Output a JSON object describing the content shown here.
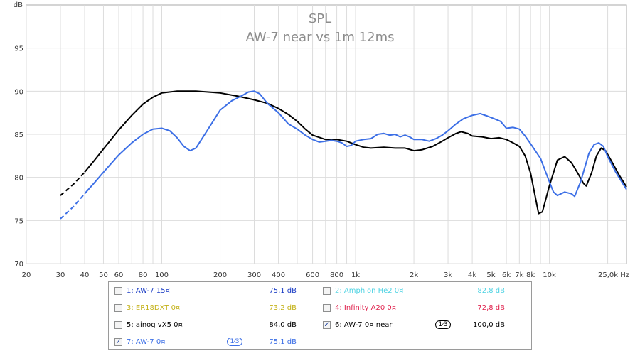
{
  "chart_data": {
    "type": "line",
    "title": "SPL",
    "subtitle": "AW-7 near vs 1m 12ms",
    "ylabel": "dB",
    "xunit": "Hz",
    "xscale": "log",
    "xlim": [
      20,
      25000
    ],
    "ylim": [
      70,
      100
    ],
    "yticks": [
      70,
      75,
      80,
      85,
      90,
      95
    ],
    "xticks": [
      {
        "v": 20,
        "label": "20"
      },
      {
        "v": 30,
        "label": "30"
      },
      {
        "v": 40,
        "label": "40"
      },
      {
        "v": 50,
        "label": "50"
      },
      {
        "v": 60,
        "label": "60"
      },
      {
        "v": 80,
        "label": "80"
      },
      {
        "v": 100,
        "label": "100"
      },
      {
        "v": 200,
        "label": "200"
      },
      {
        "v": 300,
        "label": "300"
      },
      {
        "v": 400,
        "label": "400"
      },
      {
        "v": 600,
        "label": "600"
      },
      {
        "v": 800,
        "label": "800"
      },
      {
        "v": 1000,
        "label": "1k"
      },
      {
        "v": 2000,
        "label": "2k"
      },
      {
        "v": 3000,
        "label": "3k"
      },
      {
        "v": 4000,
        "label": "4k"
      },
      {
        "v": 5000,
        "label": "5k"
      },
      {
        "v": 6000,
        "label": "6k"
      },
      {
        "v": 7000,
        "label": "7k"
      },
      {
        "v": 8000,
        "label": "8k"
      },
      {
        "v": 10000,
        "label": "10k"
      },
      {
        "v": 25000,
        "label": "25,0k Hz"
      }
    ],
    "grid": true,
    "series": [
      {
        "name": "6: AW-7 0¤ near",
        "color": "#000000",
        "dashed_below": 40,
        "points": [
          [
            30,
            77.9
          ],
          [
            35,
            79.2
          ],
          [
            40,
            80.6
          ],
          [
            45,
            82.0
          ],
          [
            50,
            83.3
          ],
          [
            60,
            85.5
          ],
          [
            70,
            87.2
          ],
          [
            80,
            88.5
          ],
          [
            90,
            89.3
          ],
          [
            100,
            89.8
          ],
          [
            120,
            90.0
          ],
          [
            150,
            90.0
          ],
          [
            200,
            89.8
          ],
          [
            250,
            89.4
          ],
          [
            300,
            89.0
          ],
          [
            350,
            88.6
          ],
          [
            400,
            88.0
          ],
          [
            450,
            87.3
          ],
          [
            500,
            86.5
          ],
          [
            550,
            85.6
          ],
          [
            600,
            84.9
          ],
          [
            700,
            84.4
          ],
          [
            800,
            84.4
          ],
          [
            900,
            84.2
          ],
          [
            1000,
            83.8
          ],
          [
            1100,
            83.5
          ],
          [
            1200,
            83.4
          ],
          [
            1400,
            83.5
          ],
          [
            1600,
            83.4
          ],
          [
            1800,
            83.4
          ],
          [
            2000,
            83.1
          ],
          [
            2200,
            83.2
          ],
          [
            2500,
            83.6
          ],
          [
            2800,
            84.2
          ],
          [
            3000,
            84.6
          ],
          [
            3300,
            85.1
          ],
          [
            3500,
            85.3
          ],
          [
            3800,
            85.1
          ],
          [
            4000,
            84.8
          ],
          [
            4500,
            84.7
          ],
          [
            5000,
            84.5
          ],
          [
            5500,
            84.6
          ],
          [
            6000,
            84.4
          ],
          [
            6500,
            84.0
          ],
          [
            7000,
            83.6
          ],
          [
            7500,
            82.5
          ],
          [
            8000,
            80.5
          ],
          [
            8500,
            77.5
          ],
          [
            8800,
            75.8
          ],
          [
            9200,
            76.0
          ],
          [
            10000,
            79.0
          ],
          [
            11000,
            82.0
          ],
          [
            12000,
            82.4
          ],
          [
            13000,
            81.7
          ],
          [
            14000,
            80.5
          ],
          [
            15000,
            79.3
          ],
          [
            15500,
            79.0
          ],
          [
            16500,
            80.5
          ],
          [
            17500,
            82.5
          ],
          [
            18500,
            83.4
          ],
          [
            19500,
            83.1
          ],
          [
            21000,
            81.8
          ],
          [
            23000,
            80.2
          ],
          [
            25000,
            78.9
          ]
        ]
      },
      {
        "name": "7: AW-7 0¤",
        "color": "#3c6fe6",
        "dashed_below": 40,
        "points": [
          [
            30,
            75.2
          ],
          [
            35,
            76.6
          ],
          [
            40,
            78.1
          ],
          [
            45,
            79.4
          ],
          [
            50,
            80.6
          ],
          [
            60,
            82.6
          ],
          [
            70,
            84.0
          ],
          [
            80,
            85.0
          ],
          [
            90,
            85.6
          ],
          [
            100,
            85.7
          ],
          [
            110,
            85.4
          ],
          [
            120,
            84.6
          ],
          [
            130,
            83.6
          ],
          [
            140,
            83.1
          ],
          [
            150,
            83.4
          ],
          [
            170,
            85.3
          ],
          [
            200,
            87.8
          ],
          [
            230,
            88.9
          ],
          [
            260,
            89.5
          ],
          [
            280,
            89.9
          ],
          [
            300,
            90.0
          ],
          [
            320,
            89.7
          ],
          [
            350,
            88.6
          ],
          [
            400,
            87.5
          ],
          [
            450,
            86.2
          ],
          [
            500,
            85.6
          ],
          [
            550,
            84.9
          ],
          [
            600,
            84.4
          ],
          [
            650,
            84.1
          ],
          [
            700,
            84.2
          ],
          [
            750,
            84.3
          ],
          [
            800,
            84.2
          ],
          [
            850,
            84.0
          ],
          [
            900,
            83.6
          ],
          [
            950,
            83.7
          ],
          [
            1000,
            84.2
          ],
          [
            1100,
            84.4
          ],
          [
            1200,
            84.5
          ],
          [
            1300,
            85.0
          ],
          [
            1400,
            85.1
          ],
          [
            1500,
            84.9
          ],
          [
            1600,
            85.0
          ],
          [
            1700,
            84.7
          ],
          [
            1800,
            84.9
          ],
          [
            1900,
            84.7
          ],
          [
            2000,
            84.4
          ],
          [
            2200,
            84.4
          ],
          [
            2400,
            84.2
          ],
          [
            2600,
            84.5
          ],
          [
            2800,
            84.9
          ],
          [
            3000,
            85.4
          ],
          [
            3300,
            86.2
          ],
          [
            3600,
            86.8
          ],
          [
            4000,
            87.2
          ],
          [
            4400,
            87.4
          ],
          [
            4800,
            87.1
          ],
          [
            5200,
            86.8
          ],
          [
            5600,
            86.5
          ],
          [
            6000,
            85.7
          ],
          [
            6500,
            85.8
          ],
          [
            7000,
            85.6
          ],
          [
            7500,
            84.8
          ],
          [
            8000,
            83.9
          ],
          [
            9000,
            82.2
          ],
          [
            10000,
            79.5
          ],
          [
            10500,
            78.3
          ],
          [
            11000,
            77.9
          ],
          [
            12000,
            78.3
          ],
          [
            13000,
            78.1
          ],
          [
            13500,
            77.8
          ],
          [
            14500,
            79.5
          ],
          [
            16000,
            82.8
          ],
          [
            17000,
            83.8
          ],
          [
            18000,
            84.0
          ],
          [
            19000,
            83.6
          ],
          [
            20000,
            82.4
          ],
          [
            22000,
            80.6
          ],
          [
            25000,
            78.6
          ]
        ]
      }
    ]
  },
  "legend": [
    {
      "name": "1: AW-7 15¤",
      "value": "75,1 dB",
      "checked": false,
      "color": "#1a3cc4"
    },
    {
      "name": "2: Amphion He2 0¤",
      "value": "82,8 dB",
      "checked": false,
      "color": "#4fd3e3"
    },
    {
      "name": "3: ER18DXT 0¤",
      "value": "73,2 dB",
      "checked": false,
      "color": "#c4b21a"
    },
    {
      "name": "4: Infinity A20 0¤",
      "value": "72,8 dB",
      "checked": false,
      "color": "#e0254f"
    },
    {
      "name": "5: ainog vX5 0¤",
      "value": "84,0 dB",
      "checked": false,
      "color": "#000000"
    },
    {
      "name": "6: AW-7 0¤ near",
      "value": "100,0 dB",
      "checked": true,
      "color": "#000000",
      "smoothing": "1⁄3"
    },
    {
      "name": "7: AW-7 0¤",
      "value": "75,1 dB",
      "checked": true,
      "color": "#3c6fe6",
      "smoothing": "1⁄3"
    }
  ]
}
